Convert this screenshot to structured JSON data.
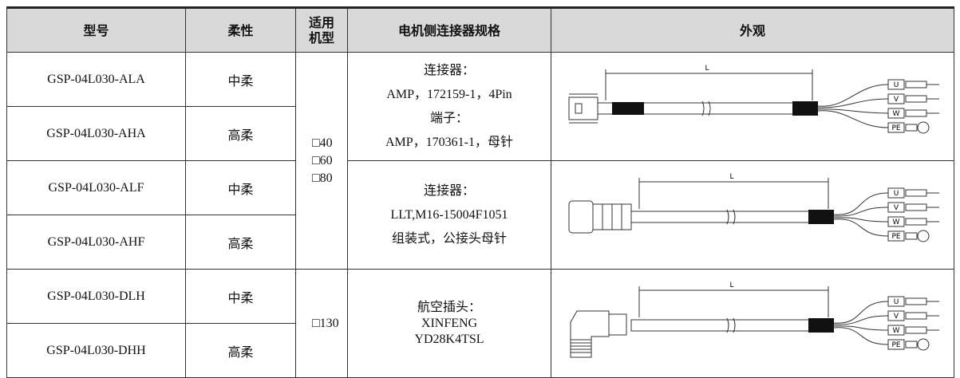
{
  "table": {
    "header": [
      "型号",
      "柔性",
      "适用\n机型",
      "电机侧连接器规格",
      "外观"
    ],
    "rows": [
      [
        "GSP-04L030-ALA",
        "中柔"
      ],
      [
        "GSP-04L030-AHA",
        "高柔"
      ],
      [
        "GSP-04L030-ALF",
        "中柔"
      ],
      [
        "GSP-04L030-AHF",
        "高柔"
      ],
      [
        "GSP-04L030-DLH",
        "中柔"
      ],
      [
        "GSP-04L030-DHH",
        "高柔"
      ]
    ],
    "groups": [
      {
        "machine_types": [
          "□40",
          "□60",
          "□80"
        ],
        "spec": [
          "连接器：",
          "AMP，172159-1，4Pin",
          "端子：",
          "AMP，170361-1，母针"
        ]
      },
      {
        "spec": [
          "连接器：",
          "LLT,M16-15004F1051",
          "组装式，公接头母针"
        ]
      },
      {
        "machine_types": [
          "□130"
        ],
        "spec": [
          "航空插头：",
          "XINFENG",
          "YD28K4TSL"
        ]
      }
    ],
    "drawing_labels": {
      "length": "L",
      "wires": [
        "U",
        "V",
        "W",
        "PE"
      ]
    }
  }
}
